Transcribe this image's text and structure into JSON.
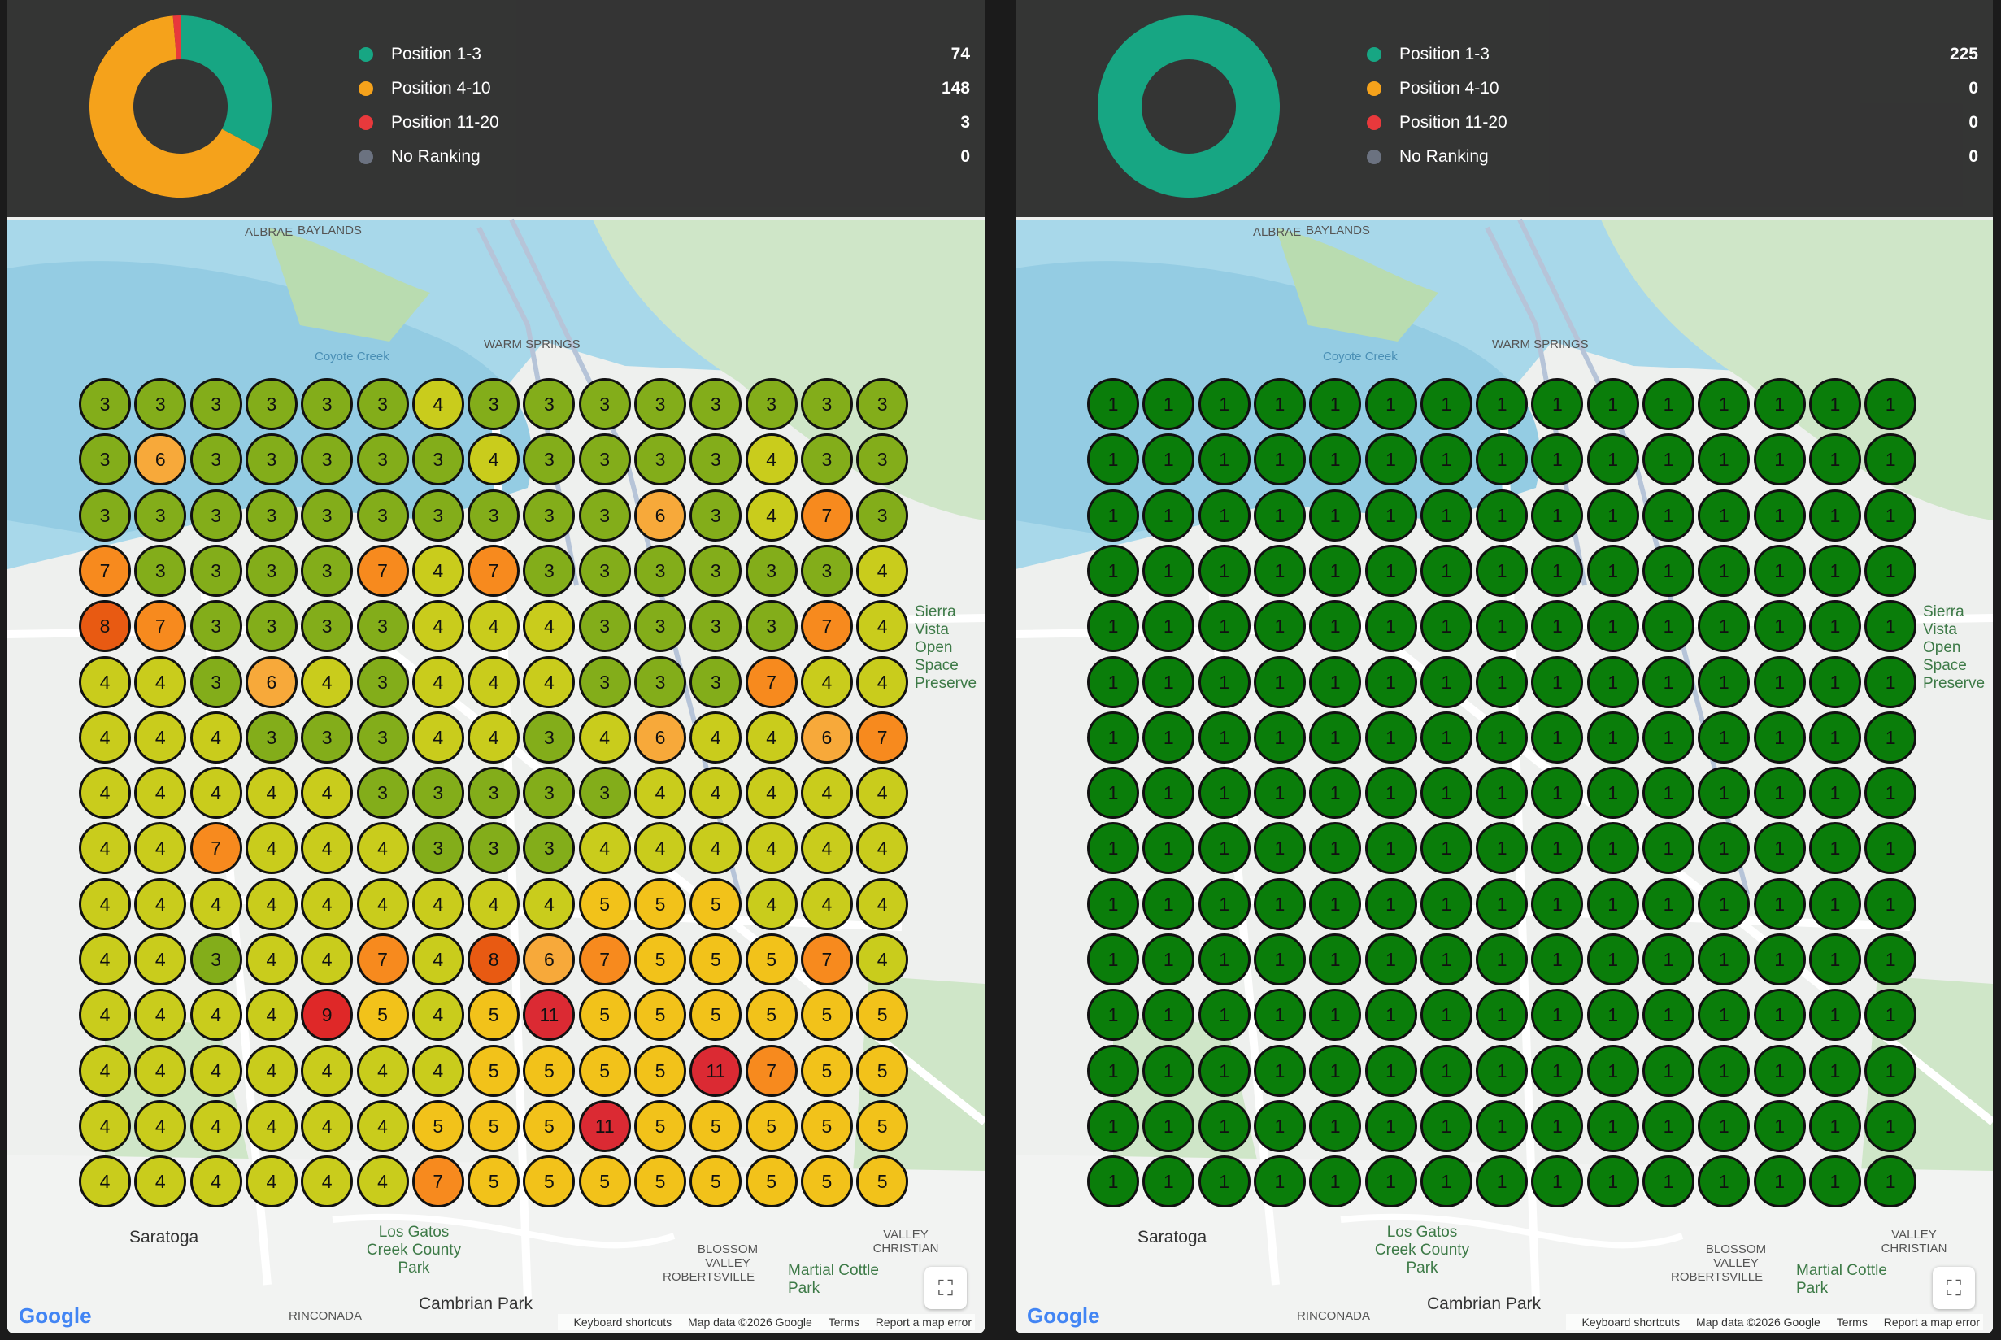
{
  "colors": {
    "pos1_3": "#17a683",
    "pos4_10": "#f5a21b",
    "pos11_20": "#e8393c",
    "none": "#6b7280"
  },
  "map_labels": [
    {
      "name": "alviso",
      "text": "ALBRAE"
    },
    {
      "name": "baylands",
      "text": "BAYLANDS"
    },
    {
      "name": "coyote-creek",
      "text": "Coyote Creek"
    },
    {
      "name": "warm-springs",
      "text": "WARM SPRINGS"
    },
    {
      "name": "saratoga",
      "text": "Saratoga"
    },
    {
      "name": "los-gatos-park",
      "text": "Los Gatos Creek County Park"
    },
    {
      "name": "cambrian-park",
      "text": "Cambrian Park"
    },
    {
      "name": "blossom-valley",
      "text": "BLOSSOM VALLEY"
    },
    {
      "name": "robertsville",
      "text": "ROBERTSVILLE"
    },
    {
      "name": "martial-cottle-park",
      "text": "Martial Cottle Park"
    },
    {
      "name": "valley-christian",
      "text": "VALLEY CHRISTIAN"
    },
    {
      "name": "rinconada",
      "text": "RINCONADA"
    },
    {
      "name": "sierra-vista",
      "text": "Sierra Vista Open Space Preserve"
    }
  ],
  "map_footer": {
    "shortcuts": "Keyboard shortcuts",
    "data": "Map data ©2026 Google",
    "terms": "Terms",
    "report": "Report a map error",
    "logo": "Google"
  },
  "panels": [
    {
      "legend": [
        {
          "label": "Position 1-3",
          "count": 74,
          "color": "#17a683"
        },
        {
          "label": "Position 4-10",
          "count": 148,
          "color": "#f5a21b"
        },
        {
          "label": "Position 11-20",
          "count": 3,
          "color": "#e8393c"
        },
        {
          "label": "No Ranking",
          "count": 0,
          "color": "#6b7280"
        }
      ],
      "grid": [
        [
          3,
          3,
          3,
          3,
          3,
          3,
          4,
          3,
          3,
          3,
          3,
          3,
          3,
          3,
          3
        ],
        [
          3,
          6,
          3,
          3,
          3,
          3,
          3,
          4,
          3,
          3,
          3,
          3,
          4,
          3,
          3
        ],
        [
          3,
          3,
          3,
          3,
          3,
          3,
          3,
          3,
          3,
          3,
          6,
          3,
          4,
          7,
          3
        ],
        [
          7,
          3,
          3,
          3,
          3,
          7,
          4,
          7,
          3,
          3,
          3,
          3,
          3,
          3,
          4
        ],
        [
          8,
          7,
          3,
          3,
          3,
          3,
          4,
          4,
          4,
          3,
          3,
          3,
          3,
          7,
          4
        ],
        [
          4,
          4,
          3,
          6,
          4,
          3,
          4,
          4,
          4,
          3,
          3,
          3,
          7,
          4,
          4
        ],
        [
          4,
          4,
          4,
          3,
          3,
          3,
          4,
          4,
          3,
          4,
          6,
          4,
          4,
          6,
          7
        ],
        [
          4,
          4,
          4,
          4,
          4,
          3,
          3,
          3,
          3,
          3,
          4,
          4,
          4,
          4,
          4
        ],
        [
          4,
          4,
          7,
          4,
          4,
          4,
          3,
          3,
          3,
          4,
          4,
          4,
          4,
          4,
          4
        ],
        [
          4,
          4,
          4,
          4,
          4,
          4,
          4,
          4,
          4,
          5,
          5,
          5,
          4,
          4,
          4
        ],
        [
          4,
          4,
          3,
          4,
          4,
          7,
          4,
          8,
          6,
          7,
          5,
          5,
          5,
          7,
          4
        ],
        [
          4,
          4,
          4,
          4,
          9,
          5,
          4,
          5,
          11,
          5,
          5,
          5,
          5,
          5,
          5
        ],
        [
          4,
          4,
          4,
          4,
          4,
          4,
          4,
          5,
          5,
          5,
          5,
          11,
          7,
          5,
          5
        ],
        [
          4,
          4,
          4,
          4,
          4,
          4,
          5,
          5,
          5,
          11,
          5,
          5,
          5,
          5,
          5
        ],
        [
          4,
          4,
          4,
          4,
          4,
          4,
          7,
          5,
          5,
          5,
          5,
          5,
          5,
          5,
          5
        ]
      ]
    },
    {
      "legend": [
        {
          "label": "Position 1-3",
          "count": 225,
          "color": "#17a683"
        },
        {
          "label": "Position 4-10",
          "count": 0,
          "color": "#f5a21b"
        },
        {
          "label": "Position 11-20",
          "count": 0,
          "color": "#e8393c"
        },
        {
          "label": "No Ranking",
          "count": 0,
          "color": "#6b7280"
        }
      ],
      "grid": [
        [
          1,
          1,
          1,
          1,
          1,
          1,
          1,
          1,
          1,
          1,
          1,
          1,
          1,
          1,
          1
        ],
        [
          1,
          1,
          1,
          1,
          1,
          1,
          1,
          1,
          1,
          1,
          1,
          1,
          1,
          1,
          1
        ],
        [
          1,
          1,
          1,
          1,
          1,
          1,
          1,
          1,
          1,
          1,
          1,
          1,
          1,
          1,
          1
        ],
        [
          1,
          1,
          1,
          1,
          1,
          1,
          1,
          1,
          1,
          1,
          1,
          1,
          1,
          1,
          1
        ],
        [
          1,
          1,
          1,
          1,
          1,
          1,
          1,
          1,
          1,
          1,
          1,
          1,
          1,
          1,
          1
        ],
        [
          1,
          1,
          1,
          1,
          1,
          1,
          1,
          1,
          1,
          1,
          1,
          1,
          1,
          1,
          1
        ],
        [
          1,
          1,
          1,
          1,
          1,
          1,
          1,
          1,
          1,
          1,
          1,
          1,
          1,
          1,
          1
        ],
        [
          1,
          1,
          1,
          1,
          1,
          1,
          1,
          1,
          1,
          1,
          1,
          1,
          1,
          1,
          1
        ],
        [
          1,
          1,
          1,
          1,
          1,
          1,
          1,
          1,
          1,
          1,
          1,
          1,
          1,
          1,
          1
        ],
        [
          1,
          1,
          1,
          1,
          1,
          1,
          1,
          1,
          1,
          1,
          1,
          1,
          1,
          1,
          1
        ],
        [
          1,
          1,
          1,
          1,
          1,
          1,
          1,
          1,
          1,
          1,
          1,
          1,
          1,
          1,
          1
        ],
        [
          1,
          1,
          1,
          1,
          1,
          1,
          1,
          1,
          1,
          1,
          1,
          1,
          1,
          1,
          1
        ],
        [
          1,
          1,
          1,
          1,
          1,
          1,
          1,
          1,
          1,
          1,
          1,
          1,
          1,
          1,
          1
        ],
        [
          1,
          1,
          1,
          1,
          1,
          1,
          1,
          1,
          1,
          1,
          1,
          1,
          1,
          1,
          1
        ],
        [
          1,
          1,
          1,
          1,
          1,
          1,
          1,
          1,
          1,
          1,
          1,
          1,
          1,
          1,
          1
        ]
      ]
    }
  ]
}
